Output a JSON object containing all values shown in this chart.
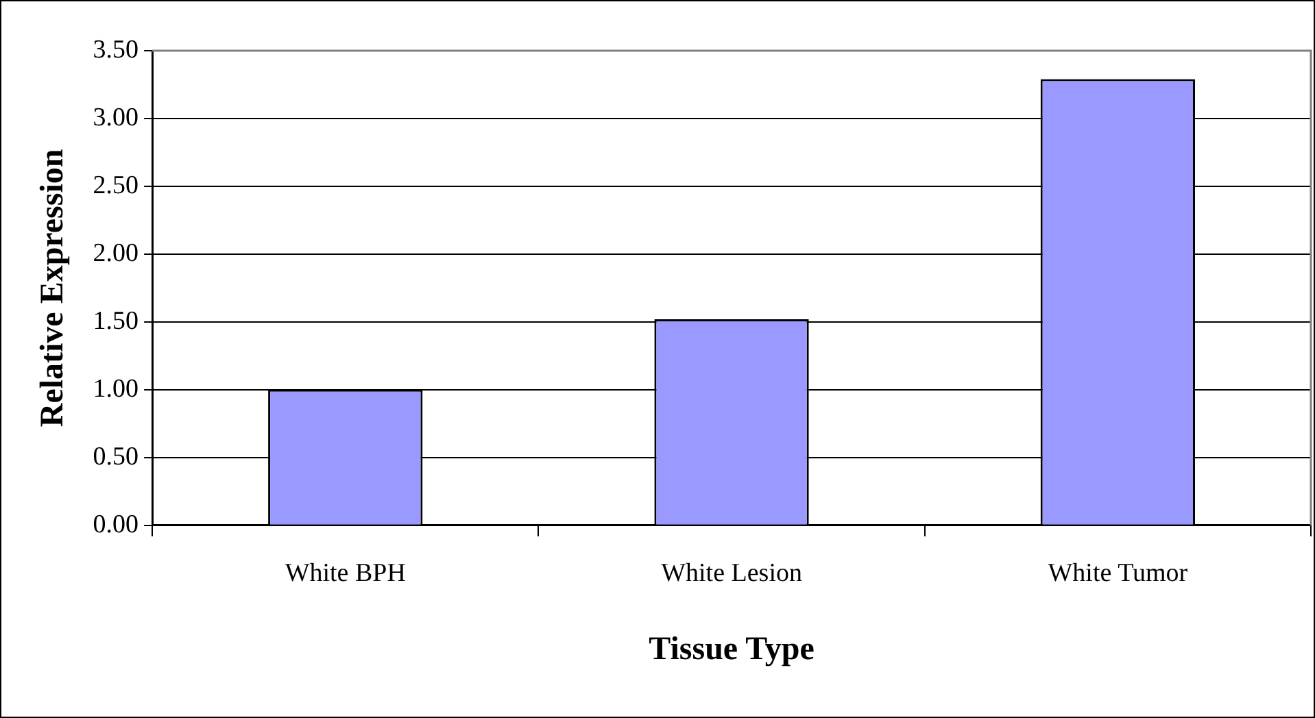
{
  "chart_data": {
    "type": "bar",
    "xlabel": "Tissue Type",
    "ylabel": "Relative Expression",
    "categories": [
      "White BPH",
      "White Lesion",
      "White Tumor"
    ],
    "values": [
      1.0,
      1.52,
      3.29
    ],
    "color": "#9999ff",
    "ylim": [
      0,
      3.5
    ],
    "yticks": [
      {
        "value": 0,
        "label": "0.00"
      },
      {
        "value": 0.5,
        "label": "0.50"
      },
      {
        "value": 1,
        "label": "1.00"
      },
      {
        "value": 1.5,
        "label": "1.50"
      },
      {
        "value": 2,
        "label": "2.00"
      },
      {
        "value": 2.5,
        "label": "2.50"
      },
      {
        "value": 3,
        "label": "3.00"
      },
      {
        "value": 3.5,
        "label": "3.50"
      }
    ],
    "grid": "y",
    "legend": false
  }
}
